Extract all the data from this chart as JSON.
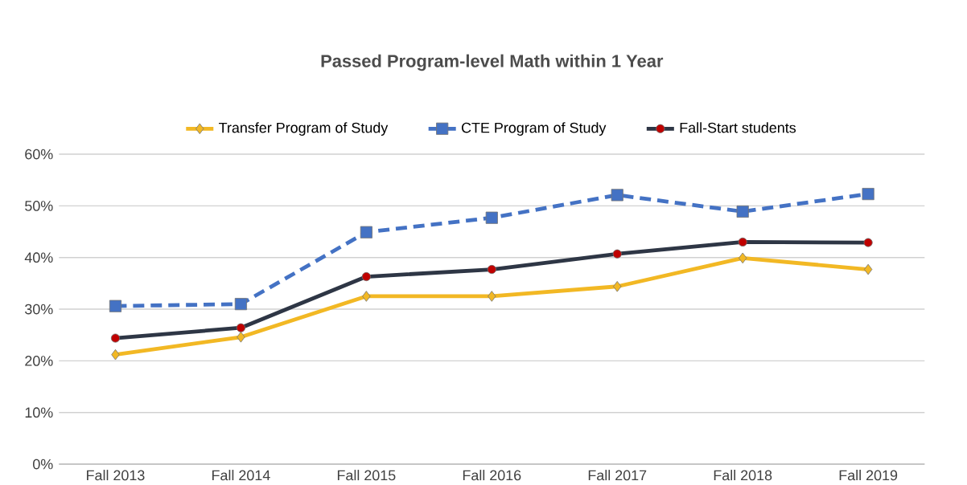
{
  "chart_data": {
    "type": "line",
    "title": "Passed Program-level Math within 1 Year",
    "categories": [
      "Fall 2013",
      "Fall 2014",
      "Fall 2015",
      "Fall 2016",
      "Fall 2017",
      "Fall 2018",
      "Fall 2019"
    ],
    "series": [
      {
        "name": "Transfer Program of Study",
        "color": "#f2b824",
        "marker": "diamond",
        "line_style": "solid",
        "values": [
          21.2,
          24.6,
          32.5,
          32.5,
          34.4,
          39.9,
          37.7
        ]
      },
      {
        "name": "CTE Program of Study",
        "color": "#4472c4",
        "marker": "square",
        "line_style": "dashed",
        "values": [
          30.6,
          31,
          44.9,
          47.7,
          52.1,
          48.9,
          52.3
        ]
      },
      {
        "name": "Fall-Start students",
        "color": "#2e3645",
        "marker": "circle",
        "line_style": "solid",
        "values": [
          24.4,
          26.4,
          36.3,
          37.7,
          40.7,
          43,
          42.9
        ]
      }
    ],
    "ylim": [
      0,
      60
    ],
    "yticks": [
      {
        "value": 0,
        "label": "0%"
      },
      {
        "value": 10,
        "label": "10%"
      },
      {
        "value": 20,
        "label": "20%"
      },
      {
        "value": 30,
        "label": "30%"
      },
      {
        "value": 40,
        "label": "40%"
      },
      {
        "value": 50,
        "label": "50%"
      },
      {
        "value": 60,
        "label": "60%"
      }
    ],
    "grid": "y",
    "legend": "top"
  }
}
